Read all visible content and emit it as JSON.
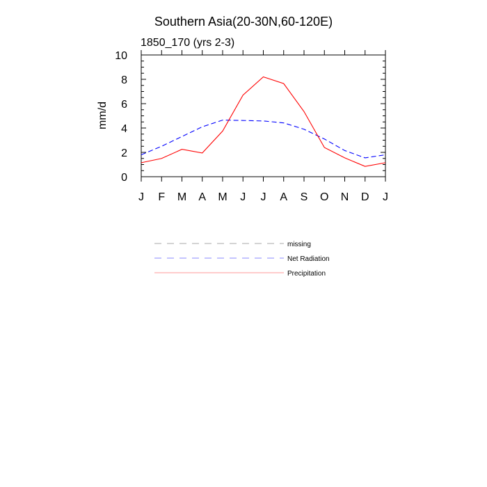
{
  "chart_data": {
    "type": "line",
    "title": "Southern Asia(20-30N,60-120E)",
    "subtitle": "1850_170 (yrs 2-3)",
    "xlabel": "",
    "ylabel": "mm/d",
    "categories": [
      "J",
      "F",
      "M",
      "A",
      "M",
      "J",
      "J",
      "A",
      "S",
      "O",
      "N",
      "D",
      "J"
    ],
    "ylim": [
      0,
      10
    ],
    "yticks": [
      0,
      2,
      4,
      6,
      8,
      10
    ],
    "grid": false,
    "legend_position": "bottom-center",
    "series": [
      {
        "name": "Net Radiation",
        "style": "dashed",
        "color": "#0000ff",
        "values": [
          1.8,
          2.5,
          3.3,
          4.1,
          4.65,
          4.62,
          4.58,
          4.42,
          3.9,
          3.1,
          2.15,
          1.55,
          1.8
        ]
      },
      {
        "name": "Precipitation",
        "style": "solid",
        "color": "#ff0000",
        "values": [
          1.15,
          1.5,
          2.25,
          1.95,
          3.75,
          6.7,
          8.2,
          7.65,
          5.35,
          2.4,
          1.55,
          0.85,
          1.15
        ]
      }
    ],
    "legend": [
      {
        "label": "missing",
        "style": "dashed",
        "color": "#aaaaaa"
      },
      {
        "label": "Net Radiation",
        "style": "dashed",
        "color": "#8888ff"
      },
      {
        "label": "Precipitation",
        "style": "solid",
        "color": "#ff9999"
      }
    ]
  }
}
